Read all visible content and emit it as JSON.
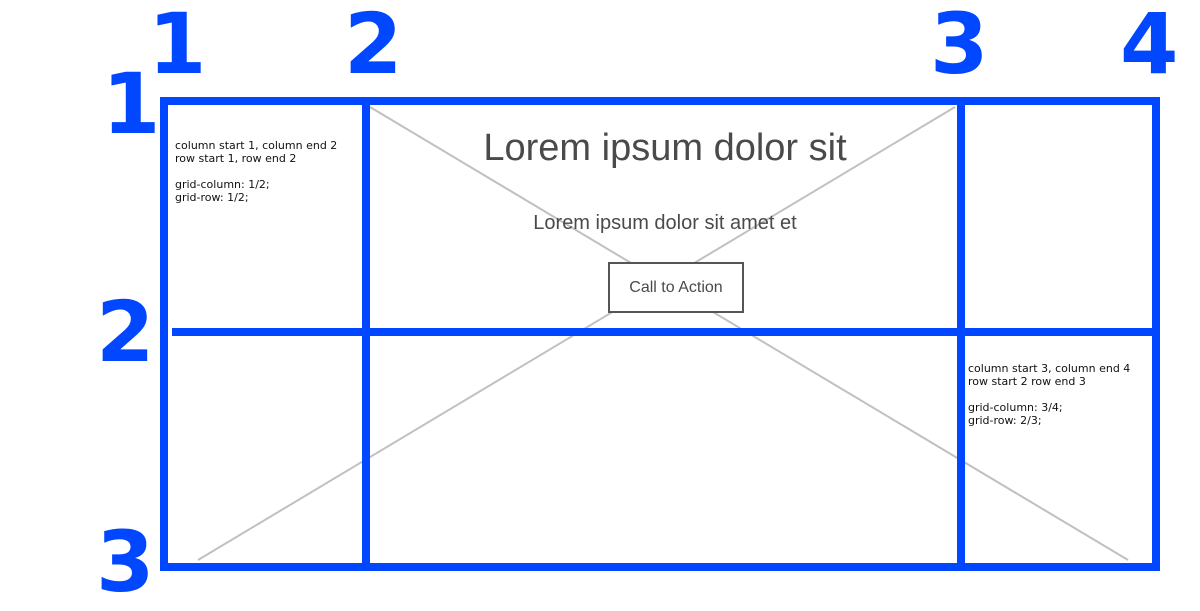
{
  "column_numbers": [
    "1",
    "2",
    "3",
    "4"
  ],
  "row_numbers": [
    "1",
    "2",
    "3"
  ],
  "cells": {
    "top_left_note": "column start 1, column end 2\nrow start 1, row end 2\n\ngrid-column: 1/2;\ngrid-row: 1/2;",
    "bottom_right_note": "column start 3, column end 4\nrow start 2 row end 3\n\ngrid-column: 3/4;\ngrid-row: 2/3;"
  },
  "hero": {
    "title": "Lorem ipsum dolor sit",
    "subtitle": "Lorem ipsum dolor sit amet et",
    "cta_label": "Call to Action"
  },
  "colors": {
    "grid_lines": "#0047ff",
    "placeholder_cross": "#c0c0c0",
    "text": "#4a4a4a"
  },
  "icons": {
    "placeholder": "image-placeholder-icon"
  }
}
